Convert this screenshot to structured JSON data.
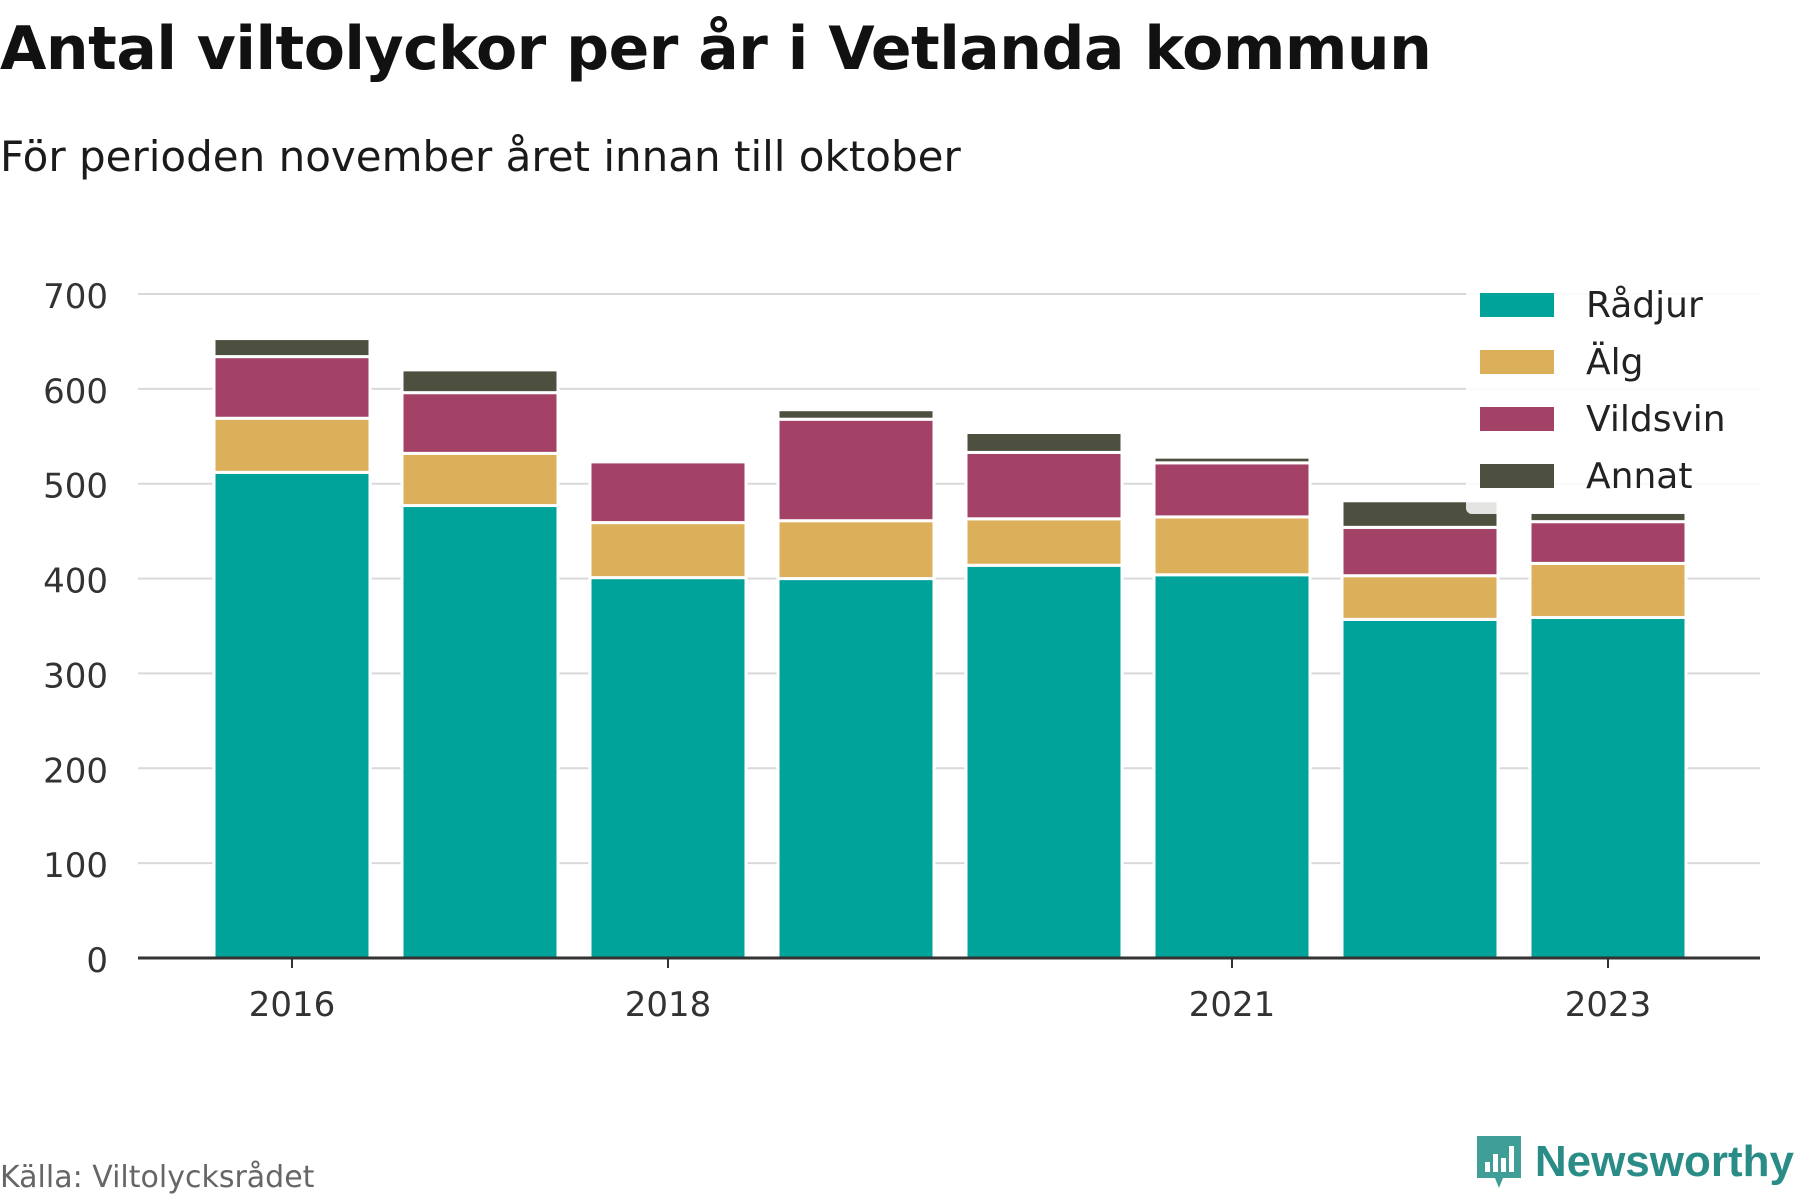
{
  "title": "Antal viltolyckor per år i Vetlanda kommun",
  "subtitle": "För perioden november året innan till oktober",
  "source": "Källa: Viltolycksrådet",
  "brand": "Newsworthy",
  "colors": {
    "Rådjur": "#00a39a",
    "Älg": "#dcaf5a",
    "Vildsvin": "#a34266",
    "Annat": "#4d4f3f"
  },
  "chart_data": {
    "type": "bar",
    "stacked": true,
    "categories": [
      "2016",
      "2017",
      "2018",
      "2019",
      "2020",
      "2021",
      "2022",
      "2023"
    ],
    "x_tick_labels": [
      "2016",
      "2018",
      "2021",
      "2023"
    ],
    "series": [
      {
        "name": "Rådjur",
        "values": [
          512,
          477,
          401,
          400,
          414,
          404,
          357,
          359
        ]
      },
      {
        "name": "Älg",
        "values": [
          57,
          55,
          58,
          61,
          49,
          61,
          46,
          57
        ]
      },
      {
        "name": "Vildsvin",
        "values": [
          65,
          64,
          64,
          107,
          70,
          57,
          51,
          44
        ]
      },
      {
        "name": "Annat",
        "values": [
          19,
          24,
          0,
          10,
          21,
          6,
          28,
          10
        ]
      }
    ],
    "ylim": [
      0,
      700
    ],
    "y_ticks": [
      0,
      100,
      200,
      300,
      400,
      500,
      600,
      700
    ],
    "grid": true,
    "legend_position": "top-right"
  }
}
